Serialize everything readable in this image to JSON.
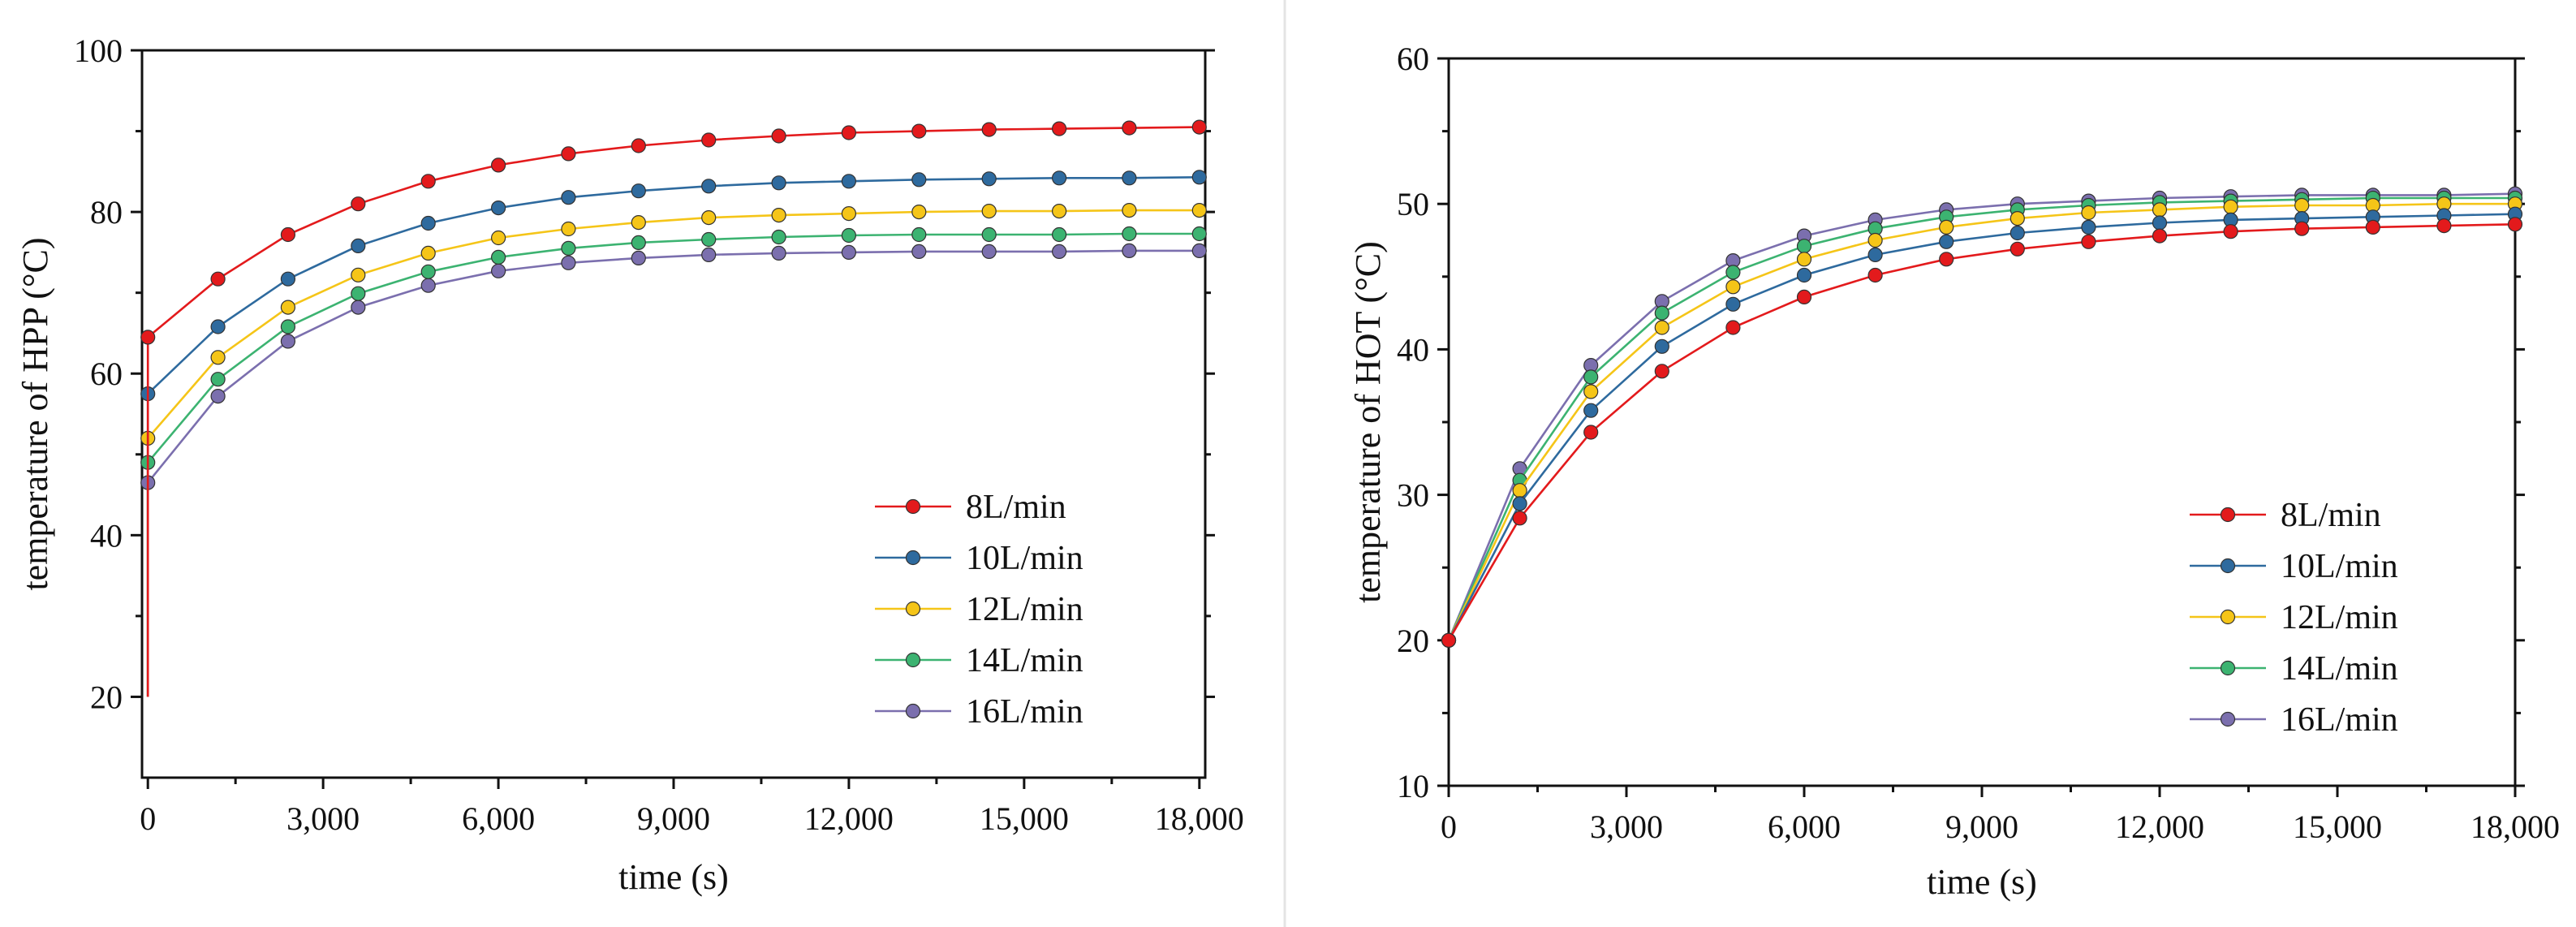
{
  "chart_data": [
    {
      "type": "line",
      "title": "",
      "xlabel": "time (s)",
      "ylabel": "temperature of HPP (°C)",
      "xlim": [
        -100,
        18100
      ],
      "ylim": [
        10,
        100
      ],
      "xticks": [
        0,
        3000,
        6000,
        9000,
        12000,
        15000,
        18000
      ],
      "xtick_labels": [
        "0",
        "3,000",
        "6,000",
        "9,000",
        "12,000",
        "15,000",
        "18,000"
      ],
      "yticks": [
        20,
        40,
        60,
        80,
        100
      ],
      "ytick_labels": [
        "20",
        "40",
        "60",
        "80",
        "100"
      ],
      "grid": false,
      "legend": "bottom-right",
      "marker_x": [
        0,
        1200,
        2400,
        3600,
        4800,
        6000,
        7200,
        8400,
        9600,
        10800,
        12000,
        13200,
        14400,
        15600,
        16800,
        18000
      ],
      "series": [
        {
          "name": "8L/min",
          "color": "#e31a1c",
          "start": 20,
          "values": [
            64.5,
            71.7,
            77.2,
            81.0,
            83.8,
            85.8,
            87.2,
            88.2,
            88.9,
            89.4,
            89.8,
            90.0,
            90.2,
            90.3,
            90.4,
            90.5
          ]
        },
        {
          "name": "10L/min",
          "color": "#2e6a9e",
          "start": 20,
          "values": [
            57.5,
            65.8,
            71.7,
            75.8,
            78.6,
            80.5,
            81.8,
            82.6,
            83.2,
            83.6,
            83.8,
            84.0,
            84.1,
            84.2,
            84.2,
            84.3
          ]
        },
        {
          "name": "12L/min",
          "color": "#f5c518",
          "start": 20,
          "values": [
            52.0,
            62.0,
            68.2,
            72.2,
            74.9,
            76.8,
            77.9,
            78.7,
            79.3,
            79.6,
            79.8,
            80.0,
            80.1,
            80.1,
            80.2,
            80.2
          ]
        },
        {
          "name": "14L/min",
          "color": "#3cb371",
          "start": 20,
          "values": [
            49.0,
            59.3,
            65.8,
            69.9,
            72.6,
            74.4,
            75.5,
            76.2,
            76.6,
            76.9,
            77.1,
            77.2,
            77.2,
            77.2,
            77.3,
            77.3
          ]
        },
        {
          "name": "16L/min",
          "color": "#7b6fae",
          "start": 20,
          "values": [
            46.5,
            57.2,
            64.0,
            68.2,
            70.9,
            72.7,
            73.7,
            74.3,
            74.7,
            74.9,
            75.0,
            75.1,
            75.1,
            75.1,
            75.2,
            75.2
          ]
        }
      ]
    },
    {
      "type": "line",
      "title": "",
      "xlabel": "time (s)",
      "ylabel": "temperature of HOT (°C)",
      "xlim": [
        0,
        18000
      ],
      "ylim": [
        10,
        60
      ],
      "xticks": [
        0,
        3000,
        6000,
        9000,
        12000,
        15000,
        18000
      ],
      "xtick_labels": [
        "0",
        "3,000",
        "6,000",
        "9,000",
        "12,000",
        "15,000",
        "18,000"
      ],
      "yticks": [
        10,
        20,
        30,
        40,
        50,
        60
      ],
      "ytick_labels": [
        "10",
        "20",
        "30",
        "40",
        "50",
        "60"
      ],
      "grid": false,
      "legend": "bottom-right",
      "marker_x": [
        0,
        1200,
        2400,
        3600,
        4800,
        6000,
        7200,
        8400,
        9600,
        10800,
        12000,
        13200,
        14400,
        15600,
        16800,
        18000
      ],
      "series": [
        {
          "name": "8L/min",
          "color": "#e31a1c",
          "values": [
            20.0,
            28.4,
            34.3,
            38.5,
            41.5,
            43.6,
            45.1,
            46.2,
            46.9,
            47.4,
            47.8,
            48.1,
            48.3,
            48.4,
            48.5,
            48.6
          ]
        },
        {
          "name": "10L/min",
          "color": "#2e6a9e",
          "values": [
            20.0,
            29.4,
            35.8,
            40.2,
            43.1,
            45.1,
            46.5,
            47.4,
            48.0,
            48.4,
            48.7,
            48.9,
            49.0,
            49.1,
            49.2,
            49.3
          ]
        },
        {
          "name": "12L/min",
          "color": "#f5c518",
          "values": [
            20.0,
            30.3,
            37.1,
            41.5,
            44.3,
            46.2,
            47.5,
            48.4,
            49.0,
            49.4,
            49.6,
            49.8,
            49.9,
            49.9,
            50.0,
            50.0
          ]
        },
        {
          "name": "14L/min",
          "color": "#3cb371",
          "values": [
            20.0,
            31.0,
            38.1,
            42.5,
            45.3,
            47.1,
            48.3,
            49.1,
            49.6,
            49.9,
            50.1,
            50.2,
            50.3,
            50.4,
            50.4,
            50.4
          ]
        },
        {
          "name": "16L/min",
          "color": "#7b6fae",
          "values": [
            20.0,
            31.8,
            38.9,
            43.3,
            46.1,
            47.8,
            48.9,
            49.6,
            50.0,
            50.2,
            50.4,
            50.5,
            50.6,
            50.6,
            50.6,
            50.7
          ]
        }
      ]
    }
  ]
}
